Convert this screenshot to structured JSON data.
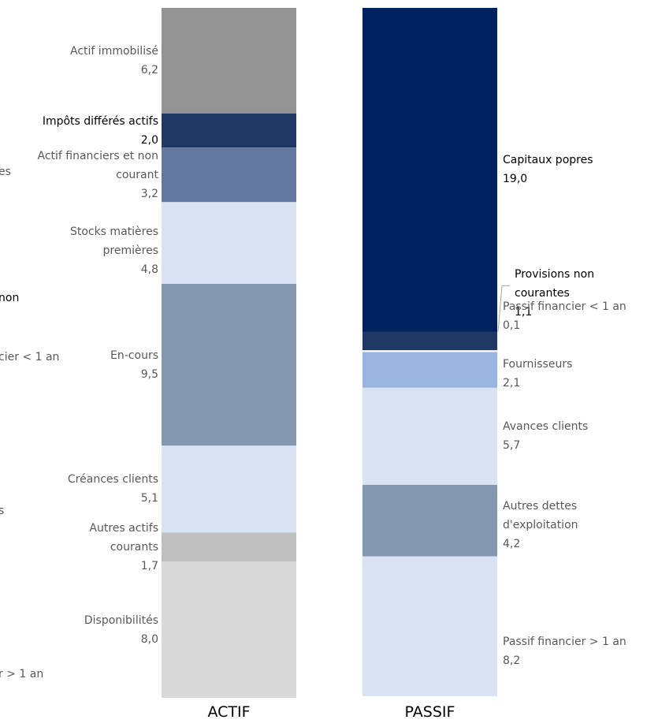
{
  "chart_data": {
    "type": "stacked_bar",
    "categories": [
      "ACTIF",
      "PASSIF"
    ],
    "bars": [
      {
        "segments": [
          {
            "name": "Actif immobilisé",
            "value": 6.2,
            "value_label": "6,2",
            "color": "#939393",
            "label_color": "#595959"
          },
          {
            "name": "Impôts différés actifs",
            "value": 2.0,
            "value_label": "2,0",
            "color": "#1f3864",
            "label_color": "#000000"
          },
          {
            "name": "Actif financiers et non courant",
            "value": 3.2,
            "value_label": "3,2",
            "color": "#64789f",
            "label_color": "#595959"
          },
          {
            "name": "Stocks matières premières",
            "value": 4.8,
            "value_label": "4,8",
            "color": "#dae3f3",
            "label_color": "#595959"
          },
          {
            "name": "En-cours",
            "value": 9.5,
            "value_label": "9,5",
            "color": "#8497b0",
            "label_color": "#595959"
          },
          {
            "name": "Créances clients",
            "value": 5.1,
            "value_label": "5,1",
            "color": "#dae3f3",
            "label_color": "#595959"
          },
          {
            "name": "Autres actifs courants",
            "value": 1.7,
            "value_label": "1,7",
            "color": "#bfbfbf",
            "label_color": "#595959"
          },
          {
            "name": "Disponibilités",
            "value": 8.0,
            "value_label": "8,0",
            "color": "#d9d9d9",
            "label_color": "#595959"
          }
        ]
      },
      {
        "segments": [
          {
            "name": "Capitaux popres",
            "value": 19.0,
            "value_label": "19,0",
            "color": "#002060",
            "label_color": "#000000"
          },
          {
            "name": "Provisions non courantes",
            "value": 1.1,
            "value_label": "1,1",
            "color": "#1f3864",
            "label_color": "#000000"
          },
          {
            "name": "Passif financier < 1 an",
            "value": 0.1,
            "value_label": "0,1",
            "color": "#ffffff",
            "label_color": "#595959"
          },
          {
            "name": "Fournisseurs",
            "value": 2.1,
            "value_label": "2,1",
            "color": "#9ab4e0",
            "label_color": "#595959"
          },
          {
            "name": "Avances clients",
            "value": 5.7,
            "value_label": "5,7",
            "color": "#dae3f3",
            "label_color": "#595959"
          },
          {
            "name": "Autres dettes d'exploitation",
            "value": 4.2,
            "value_label": "4,2",
            "color": "#8497b0",
            "label_color": "#595959"
          },
          {
            "name": "Passif financier > 1 an",
            "value": 8.2,
            "value_label": "8,2",
            "color": "#dae3f3",
            "label_color": "#595959"
          }
        ]
      }
    ],
    "cropped_texts": [
      "es",
      "non",
      "cier < 1 an",
      "s",
      "r > 1 an"
    ]
  }
}
